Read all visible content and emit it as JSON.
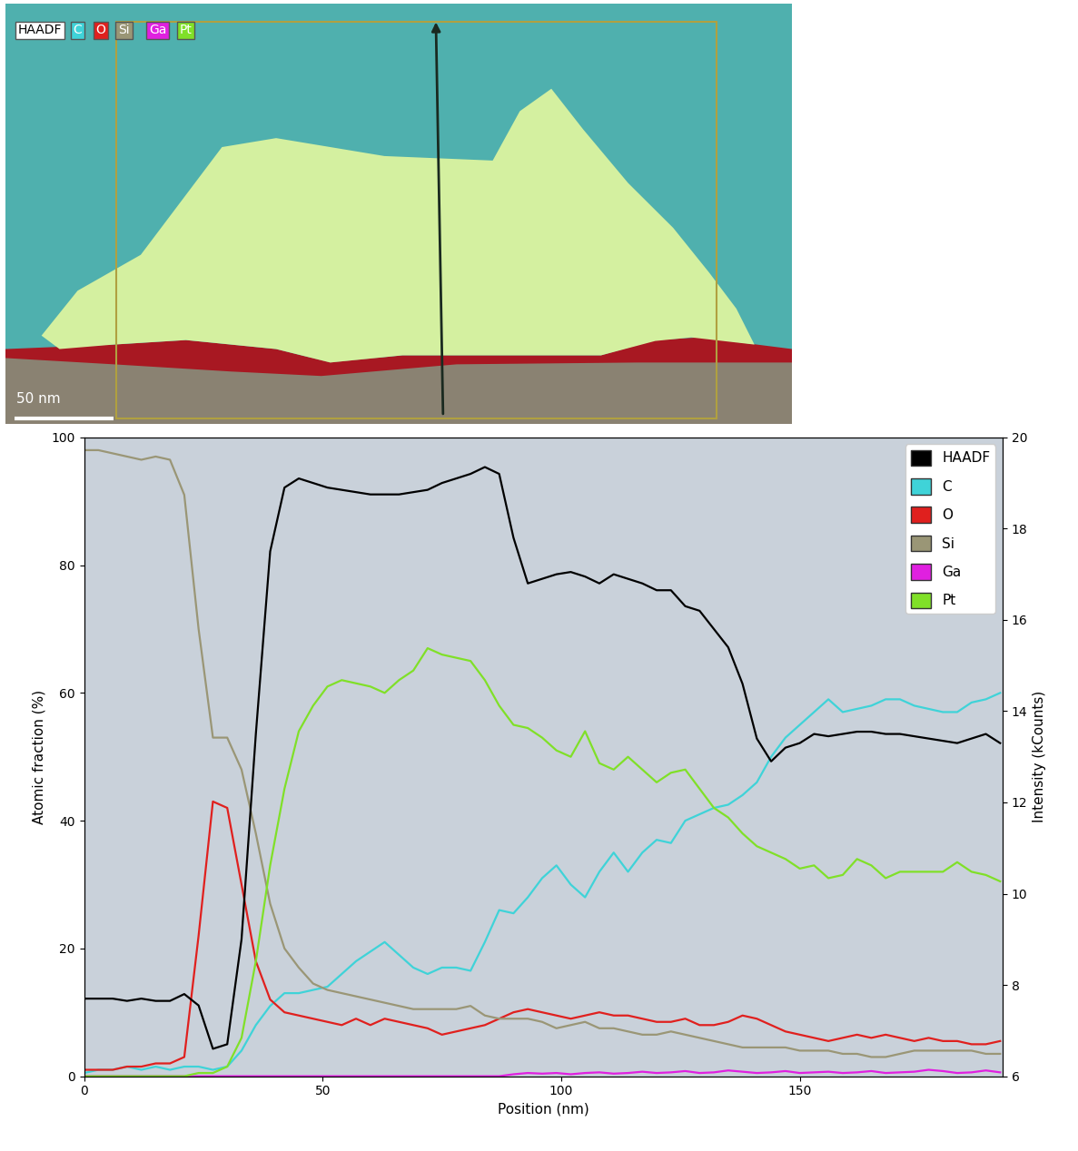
{
  "chart_data": {
    "type": "line",
    "x_label": "Position (nm)",
    "y_label": "Atomic fraction (%)",
    "y2_label": "Intensity (kCounts)",
    "xlim": [
      0,
      192.5
    ],
    "xticks": [
      0,
      50,
      100,
      150
    ],
    "ylim": [
      0,
      100
    ],
    "yticks": [
      0,
      20,
      40,
      60,
      80,
      100
    ],
    "y2lim": [
      6,
      20
    ],
    "y2ticks": [
      6,
      8,
      10,
      12,
      14,
      16,
      18,
      20
    ],
    "grid": false,
    "legend": "upper right",
    "x": [
      0,
      3,
      6,
      9,
      12,
      15,
      18,
      21,
      24,
      27,
      30,
      33,
      36,
      39,
      42,
      45,
      48,
      51,
      54,
      57,
      60,
      63,
      66,
      69,
      72,
      75,
      78,
      81,
      84,
      87,
      90,
      93,
      96,
      99,
      102,
      105,
      108,
      111,
      114,
      117,
      120,
      123,
      126,
      129,
      132,
      135,
      138,
      141,
      144,
      147,
      150,
      153,
      156,
      159,
      162,
      165,
      168,
      171,
      174,
      177,
      180,
      183,
      186,
      189,
      192
    ],
    "series": [
      {
        "name": "HAADF",
        "color": "#000000",
        "axis": "y2",
        "values": [
          7.7,
          7.7,
          7.7,
          7.65,
          7.7,
          7.65,
          7.65,
          7.8,
          7.55,
          6.6,
          6.7,
          9.0,
          13.5,
          17.5,
          18.9,
          19.1,
          19.0,
          18.9,
          18.85,
          18.8,
          18.75,
          18.75,
          18.75,
          18.8,
          18.85,
          19.0,
          19.1,
          19.2,
          19.35,
          19.2,
          17.8,
          16.8,
          16.9,
          17.0,
          17.05,
          16.95,
          16.8,
          17.0,
          16.9,
          16.8,
          16.65,
          16.65,
          16.3,
          16.2,
          15.8,
          15.4,
          14.6,
          13.4,
          12.9,
          13.2,
          13.3,
          13.5,
          13.45,
          13.5,
          13.55,
          13.55,
          13.5,
          13.5,
          13.45,
          13.4,
          13.35,
          13.3,
          13.4,
          13.5,
          13.3
        ]
      },
      {
        "name": "C",
        "color": "#3fd3d8",
        "values": [
          0.5,
          1,
          1,
          1.5,
          1,
          1.5,
          1,
          1.5,
          1.5,
          1,
          1.5,
          4,
          8,
          11,
          13,
          13,
          13.5,
          14,
          16,
          18,
          19.5,
          21,
          19,
          17,
          16,
          17,
          17,
          16.5,
          21,
          26,
          25.5,
          28,
          31,
          33,
          30,
          28,
          32,
          35,
          32,
          35,
          37,
          36.5,
          40,
          41,
          42,
          42.5,
          44,
          46,
          50,
          53,
          55,
          57,
          59,
          57,
          57.5,
          58,
          59,
          59,
          58,
          57.5,
          57,
          57,
          58.5,
          59,
          60
        ]
      },
      {
        "name": "O",
        "color": "#e0201e",
        "values": [
          1,
          1,
          1,
          1.5,
          1.5,
          2,
          2,
          3,
          22,
          43,
          42,
          30,
          18,
          12,
          10,
          9.5,
          9,
          8.5,
          8,
          9,
          8,
          9,
          8.5,
          8,
          7.5,
          6.5,
          7,
          7.5,
          8,
          9,
          10,
          10.5,
          10,
          9.5,
          9,
          9.5,
          10,
          9.5,
          9.5,
          9,
          8.5,
          8.5,
          9,
          8,
          8,
          8.5,
          9.5,
          9,
          8,
          7,
          6.5,
          6,
          5.5,
          6,
          6.5,
          6,
          6.5,
          6,
          5.5,
          6,
          5.5,
          5.5,
          5,
          5,
          5.5
        ]
      },
      {
        "name": "Si",
        "color": "#9a9676",
        "values": [
          98,
          98,
          97.5,
          97,
          96.5,
          97,
          96.5,
          91,
          70,
          53,
          53,
          48,
          38,
          27,
          20,
          17,
          14.5,
          13.5,
          13,
          12.5,
          12,
          11.5,
          11,
          10.5,
          10.5,
          10.5,
          10.5,
          11,
          9.5,
          9,
          9,
          9,
          8.5,
          7.5,
          8,
          8.5,
          7.5,
          7.5,
          7,
          6.5,
          6.5,
          7,
          6.5,
          6,
          5.5,
          5,
          4.5,
          4.5,
          4.5,
          4.5,
          4,
          4,
          4,
          3.5,
          3.5,
          3,
          3,
          3.5,
          4,
          4,
          4,
          4,
          4,
          3.5,
          3.5
        ]
      },
      {
        "name": "Ga",
        "color": "#e020e0",
        "values": [
          0,
          0,
          0,
          0,
          0,
          0,
          0,
          0,
          0,
          0,
          0,
          0,
          0,
          0,
          0,
          0,
          0,
          0,
          0,
          0,
          0,
          0,
          0,
          0,
          0,
          0,
          0,
          0,
          0,
          0,
          0.3,
          0.5,
          0.4,
          0.5,
          0.3,
          0.5,
          0.6,
          0.4,
          0.5,
          0.7,
          0.5,
          0.6,
          0.8,
          0.5,
          0.6,
          0.9,
          0.7,
          0.5,
          0.6,
          0.8,
          0.5,
          0.6,
          0.7,
          0.5,
          0.6,
          0.8,
          0.5,
          0.6,
          0.7,
          1,
          0.8,
          0.5,
          0.6,
          0.9,
          0.6
        ]
      },
      {
        "name": "Pt",
        "color": "#80e028",
        "values": [
          0,
          0,
          0,
          0,
          0,
          0,
          0,
          0,
          0.5,
          0.5,
          1.5,
          6,
          18,
          33,
          45,
          54,
          58,
          61,
          62,
          61.5,
          61,
          60,
          62,
          63.5,
          67,
          66,
          65.5,
          65,
          62,
          58,
          55,
          54.5,
          53,
          51,
          50,
          54,
          49,
          48,
          50,
          48,
          46,
          47.5,
          48,
          45,
          42,
          40.5,
          38,
          36,
          35,
          34,
          32.5,
          33,
          31,
          31.5,
          34,
          33,
          31,
          32,
          32,
          32,
          32,
          33.5,
          32,
          31.5,
          30.5
        ]
      }
    ]
  },
  "eds_map": {
    "labels": [
      "HAADF",
      "C",
      "O",
      "Si",
      "Ga",
      "Pt"
    ],
    "label_colors": [
      "#ffffff",
      "#3fd3d8",
      "#e0201e",
      "#9a9676",
      "#e020e0",
      "#80e028"
    ],
    "scale_bar": "50 nm"
  }
}
